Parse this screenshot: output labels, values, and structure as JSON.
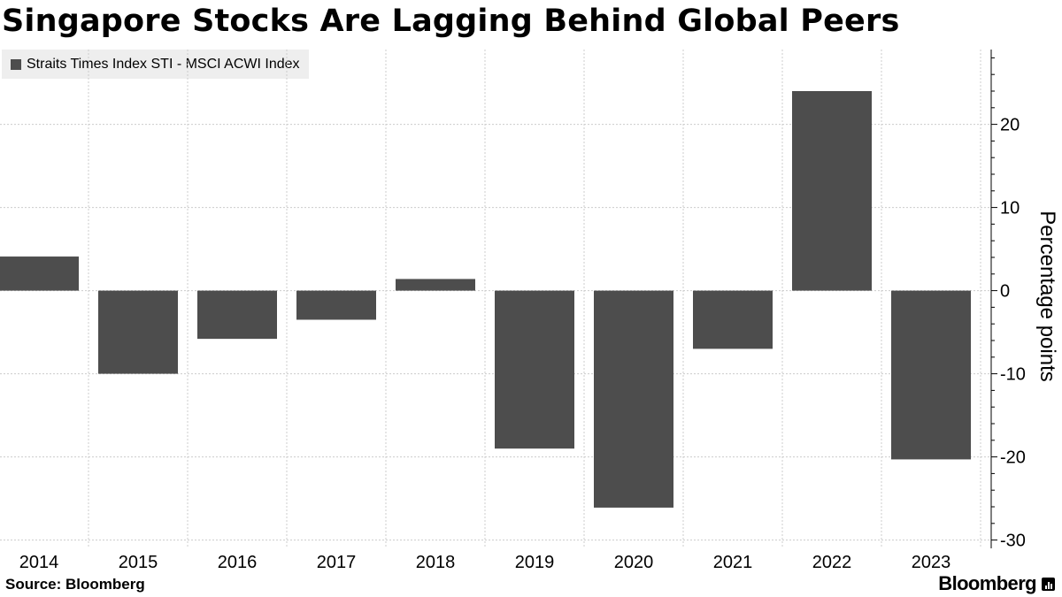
{
  "title": "Singapore Stocks Are Lagging Behind Global Peers",
  "legend": {
    "label": "Straits Times Index STI - MSCI ACWI Index",
    "color": "#4d4d4d"
  },
  "footer": {
    "source": "Source: Bloomberg",
    "logo_text": "Bloomberg"
  },
  "chart_data": {
    "type": "bar",
    "categories": [
      "2014",
      "2015",
      "2016",
      "2017",
      "2018",
      "2019",
      "2020",
      "2021",
      "2022",
      "2023"
    ],
    "series": [
      {
        "name": "Straits Times Index STI - MSCI ACWI Index",
        "values": [
          4.1,
          -10.0,
          -5.8,
          -3.5,
          1.4,
          -19.0,
          -26.1,
          -7.0,
          24.0,
          -20.3
        ],
        "color": "#4d4d4d"
      }
    ],
    "ylabel": "Percentage points",
    "ylim": [
      -31,
      29
    ],
    "yticks": [
      -30,
      -20,
      -10,
      0,
      10,
      20
    ],
    "ytick_labels": [
      "-30",
      "-20",
      "-10",
      "0",
      "10",
      "20"
    ],
    "y_axis_side": "right",
    "grid": true,
    "legend_position": "top-left"
  }
}
